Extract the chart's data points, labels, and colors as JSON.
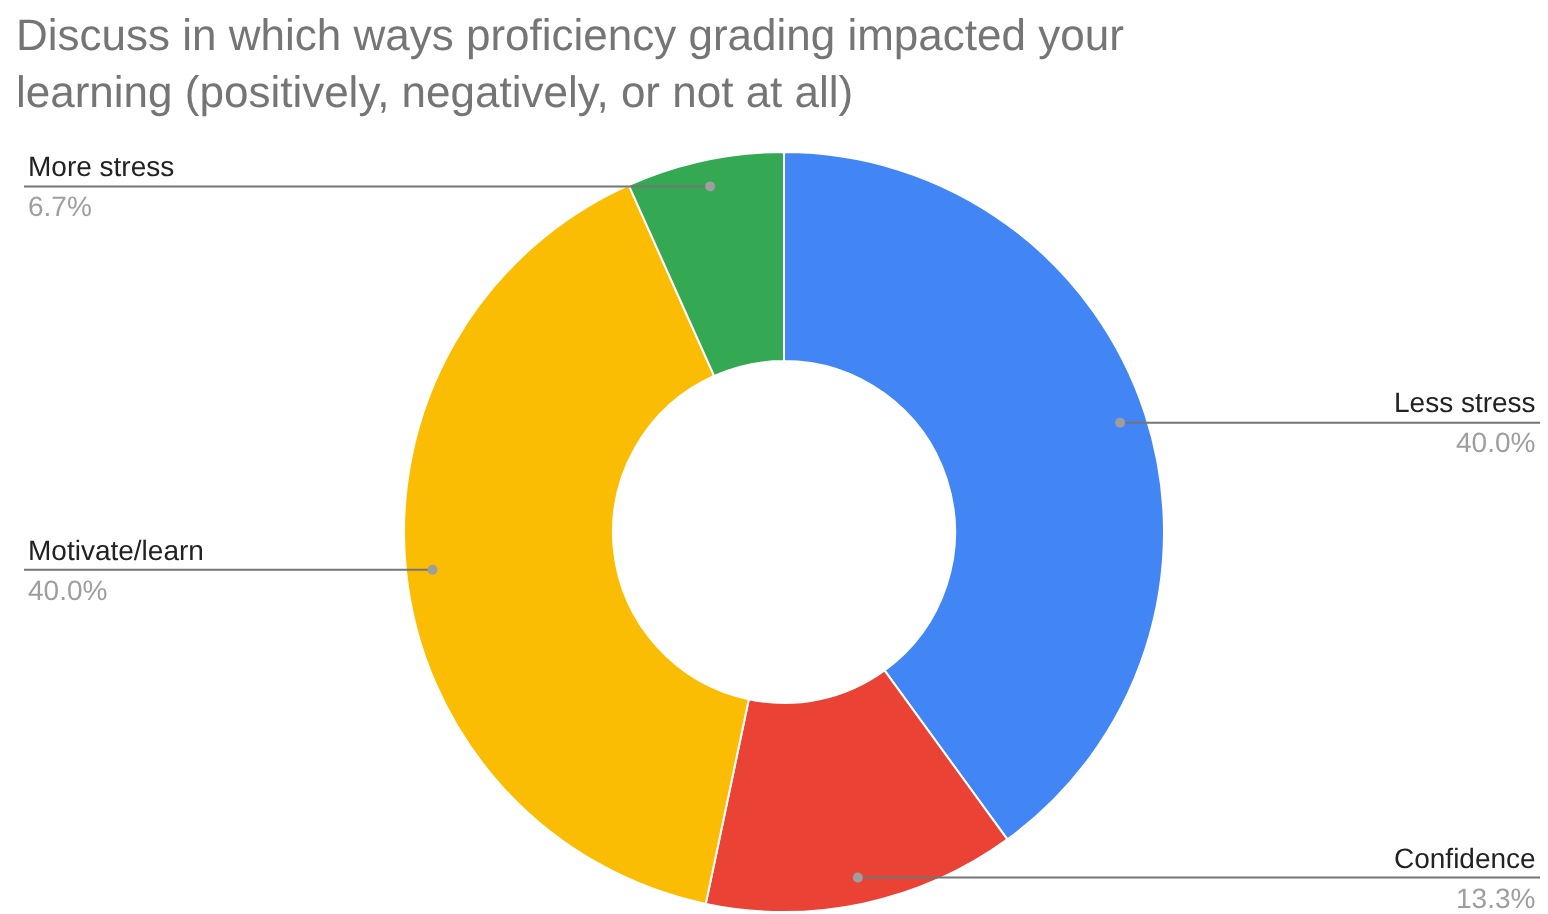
{
  "chart_data": {
    "type": "donut",
    "title": "Discuss in which ways proficiency grading impacted your learning (positively, negatively, or not at all)",
    "categories": [
      "Less stress",
      "Confidence",
      "Motivate/learn",
      "More stress"
    ],
    "values": [
      40.0,
      13.3,
      40.0,
      6.7
    ],
    "colors": [
      "#4285f4",
      "#ea4335",
      "#fbbc04",
      "#34a853"
    ],
    "value_labels": [
      "40.0%",
      "13.3%",
      "40.0%",
      "6.7%"
    ]
  }
}
